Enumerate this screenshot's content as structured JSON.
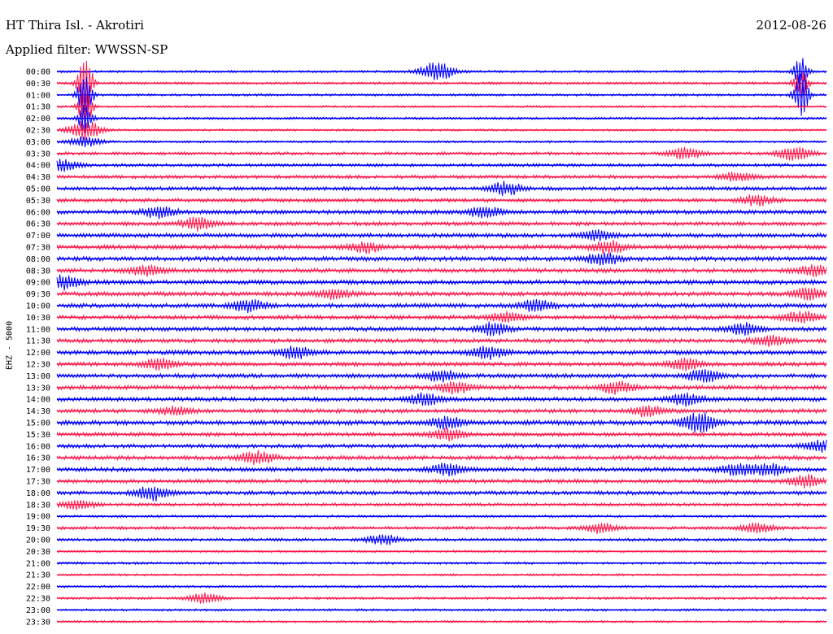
{
  "header": {
    "station": "HT Thira Isl. - Akrotiri",
    "date": "2012-08-26",
    "filter_label": "Applied filter: WWSSN-SP"
  },
  "axis": {
    "ylabel": "EHZ - 5000"
  },
  "colors": {
    "trace_a": "#0000ff",
    "trace_b": "#ff1a4d",
    "background": "#ffffff"
  },
  "chart_data": {
    "type": "line",
    "title": "",
    "ylabel": "EHZ - 5000",
    "x_unit": "minutes within half-hour row",
    "xlim": [
      0,
      30
    ],
    "rows": [
      {
        "time": "00:00",
        "color": "blue",
        "activity": 0.15,
        "bursts": [
          {
            "x": 14.8,
            "amp": 2
          },
          {
            "x": 29.0,
            "amp": 3
          }
        ]
      },
      {
        "time": "00:30",
        "color": "red",
        "activity": 0.15,
        "bursts": [
          {
            "x": 1.1,
            "amp": 6
          },
          {
            "x": 29.0,
            "amp": 3
          }
        ]
      },
      {
        "time": "01:00",
        "color": "blue",
        "activity": 0.15,
        "bursts": [
          {
            "x": 1.1,
            "amp": 5
          },
          {
            "x": 29.0,
            "amp": 5
          }
        ]
      },
      {
        "time": "01:30",
        "color": "red",
        "activity": 0.1,
        "bursts": [
          {
            "x": 1.1,
            "amp": 4
          }
        ]
      },
      {
        "time": "02:00",
        "color": "blue",
        "activity": 0.15,
        "bursts": [
          {
            "x": 1.1,
            "amp": 3
          }
        ]
      },
      {
        "time": "02:30",
        "color": "red",
        "activity": 0.1,
        "bursts": [
          {
            "x": 1.1,
            "amp": 2
          }
        ]
      },
      {
        "time": "03:00",
        "color": "blue",
        "activity": 0.1,
        "bursts": [
          {
            "x": 1.1,
            "amp": 1
          }
        ]
      },
      {
        "time": "03:30",
        "color": "red",
        "activity": 0.3,
        "bursts": [
          {
            "x": 24.5,
            "amp": 1.2
          },
          {
            "x": 28.7,
            "amp": 1.5
          }
        ]
      },
      {
        "time": "04:00",
        "color": "blue",
        "activity": 0.3,
        "bursts": [
          {
            "x": 0.2,
            "amp": 1.2
          }
        ]
      },
      {
        "time": "04:30",
        "color": "red",
        "activity": 0.35,
        "bursts": [
          {
            "x": 26.5,
            "amp": 1
          }
        ]
      },
      {
        "time": "05:00",
        "color": "blue",
        "activity": 0.4,
        "bursts": [
          {
            "x": 17.5,
            "amp": 1.3
          }
        ]
      },
      {
        "time": "05:30",
        "color": "red",
        "activity": 0.45,
        "bursts": [
          {
            "x": 27.3,
            "amp": 1
          }
        ]
      },
      {
        "time": "06:00",
        "color": "blue",
        "activity": 0.5,
        "bursts": [
          {
            "x": 4.0,
            "amp": 1.2
          },
          {
            "x": 16.7,
            "amp": 1.2
          }
        ]
      },
      {
        "time": "06:30",
        "color": "red",
        "activity": 0.45,
        "bursts": [
          {
            "x": 5.5,
            "amp": 1.3
          }
        ]
      },
      {
        "time": "07:00",
        "color": "blue",
        "activity": 0.5,
        "bursts": [
          {
            "x": 21.0,
            "amp": 1
          }
        ]
      },
      {
        "time": "07:30",
        "color": "red",
        "activity": 0.55,
        "bursts": [
          {
            "x": 12.0,
            "amp": 1
          },
          {
            "x": 21.5,
            "amp": 1.2
          }
        ]
      },
      {
        "time": "08:00",
        "color": "blue",
        "activity": 0.55,
        "bursts": [
          {
            "x": 21.3,
            "amp": 1.2
          }
        ]
      },
      {
        "time": "08:30",
        "color": "red",
        "activity": 0.55,
        "bursts": [
          {
            "x": 3.5,
            "amp": 1
          },
          {
            "x": 29.5,
            "amp": 1
          }
        ]
      },
      {
        "time": "09:00",
        "color": "blue",
        "activity": 0.55,
        "bursts": [
          {
            "x": 0.3,
            "amp": 1.3
          }
        ]
      },
      {
        "time": "09:30",
        "color": "red",
        "activity": 0.55,
        "bursts": [
          {
            "x": 10.8,
            "amp": 1
          },
          {
            "x": 29.3,
            "amp": 1.2
          }
        ]
      },
      {
        "time": "10:00",
        "color": "blue",
        "activity": 0.55,
        "bursts": [
          {
            "x": 7.5,
            "amp": 1.2
          },
          {
            "x": 18.7,
            "amp": 1.2
          }
        ]
      },
      {
        "time": "10:30",
        "color": "red",
        "activity": 0.5,
        "bursts": [
          {
            "x": 17.5,
            "amp": 1
          },
          {
            "x": 29.0,
            "amp": 1.2
          }
        ]
      },
      {
        "time": "11:00",
        "color": "blue",
        "activity": 0.5,
        "bursts": [
          {
            "x": 17.0,
            "amp": 1.2
          },
          {
            "x": 26.8,
            "amp": 1.2
          }
        ]
      },
      {
        "time": "11:30",
        "color": "red",
        "activity": 0.5,
        "bursts": [
          {
            "x": 27.8,
            "amp": 1.2
          }
        ]
      },
      {
        "time": "12:00",
        "color": "blue",
        "activity": 0.55,
        "bursts": [
          {
            "x": 9.3,
            "amp": 1.2
          },
          {
            "x": 16.8,
            "amp": 1.3
          }
        ]
      },
      {
        "time": "12:30",
        "color": "red",
        "activity": 0.5,
        "bursts": [
          {
            "x": 4.0,
            "amp": 1.2
          },
          {
            "x": 24.5,
            "amp": 1.2
          }
        ]
      },
      {
        "time": "13:00",
        "color": "blue",
        "activity": 0.5,
        "bursts": [
          {
            "x": 15.0,
            "amp": 1.2
          },
          {
            "x": 25.2,
            "amp": 1.2
          }
        ]
      },
      {
        "time": "13:30",
        "color": "red",
        "activity": 0.55,
        "bursts": [
          {
            "x": 15.5,
            "amp": 1.2
          },
          {
            "x": 21.8,
            "amp": 1.2
          }
        ]
      },
      {
        "time": "14:00",
        "color": "blue",
        "activity": 0.5,
        "bursts": [
          {
            "x": 14.3,
            "amp": 1.2
          },
          {
            "x": 24.5,
            "amp": 1.2
          }
        ]
      },
      {
        "time": "14:30",
        "color": "red",
        "activity": 0.5,
        "bursts": [
          {
            "x": 4.6,
            "amp": 1
          },
          {
            "x": 23.0,
            "amp": 1
          }
        ]
      },
      {
        "time": "15:00",
        "color": "blue",
        "activity": 0.6,
        "bursts": [
          {
            "x": 15.2,
            "amp": 1.2
          },
          {
            "x": 25.0,
            "amp": 2
          }
        ]
      },
      {
        "time": "15:30",
        "color": "red",
        "activity": 0.45,
        "bursts": [
          {
            "x": 15.2,
            "amp": 1.2
          }
        ]
      },
      {
        "time": "16:00",
        "color": "blue",
        "activity": 0.45,
        "bursts": [
          {
            "x": 29.8,
            "amp": 1.2
          }
        ]
      },
      {
        "time": "16:30",
        "color": "red",
        "activity": 0.5,
        "bursts": [
          {
            "x": 7.8,
            "amp": 1.3
          }
        ]
      },
      {
        "time": "17:00",
        "color": "blue",
        "activity": 0.5,
        "bursts": [
          {
            "x": 15.2,
            "amp": 1.2
          },
          {
            "x": 26.5,
            "amp": 1.3
          },
          {
            "x": 27.8,
            "amp": 1.2
          }
        ]
      },
      {
        "time": "17:30",
        "color": "red",
        "activity": 0.45,
        "bursts": [
          {
            "x": 29.2,
            "amp": 1.2
          }
        ]
      },
      {
        "time": "18:00",
        "color": "blue",
        "activity": 0.45,
        "bursts": [
          {
            "x": 3.7,
            "amp": 1.5
          }
        ]
      },
      {
        "time": "18:30",
        "color": "red",
        "activity": 0.3,
        "bursts": [
          {
            "x": 0.8,
            "amp": 1
          }
        ]
      },
      {
        "time": "19:00",
        "color": "blue",
        "activity": 0.15,
        "bursts": []
      },
      {
        "time": "19:30",
        "color": "red",
        "activity": 0.3,
        "bursts": [
          {
            "x": 21.2,
            "amp": 1
          },
          {
            "x": 27.3,
            "amp": 1
          }
        ]
      },
      {
        "time": "20:00",
        "color": "blue",
        "activity": 0.25,
        "bursts": [
          {
            "x": 12.7,
            "amp": 1
          }
        ]
      },
      {
        "time": "20:30",
        "color": "red",
        "activity": 0.12,
        "bursts": []
      },
      {
        "time": "21:00",
        "color": "blue",
        "activity": 0.15,
        "bursts": []
      },
      {
        "time": "21:30",
        "color": "red",
        "activity": 0.12,
        "bursts": []
      },
      {
        "time": "22:00",
        "color": "blue",
        "activity": 0.12,
        "bursts": []
      },
      {
        "time": "22:30",
        "color": "red",
        "activity": 0.2,
        "bursts": [
          {
            "x": 5.8,
            "amp": 1
          }
        ]
      },
      {
        "time": "23:00",
        "color": "blue",
        "activity": 0.12,
        "bursts": []
      },
      {
        "time": "23:30",
        "color": "red",
        "activity": 0.12,
        "bursts": []
      }
    ]
  }
}
